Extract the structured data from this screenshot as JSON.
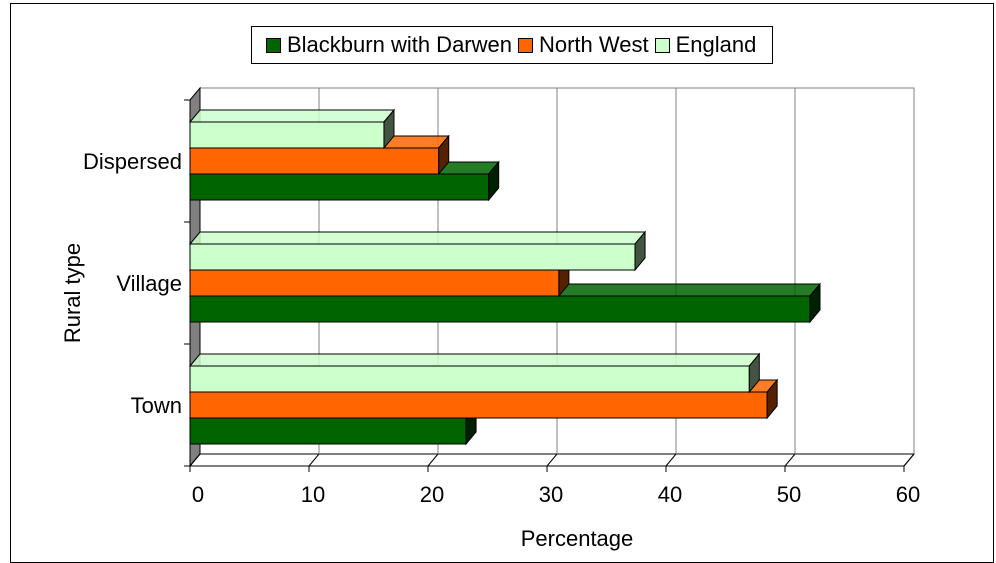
{
  "legend": {
    "items": [
      {
        "label": "Blackburn with Darwen",
        "color": "#006400"
      },
      {
        "label": "North West",
        "color": "#ff6600"
      },
      {
        "label": "England",
        "color": "#ccffcc"
      }
    ]
  },
  "chart_data": {
    "type": "bar",
    "orientation": "horizontal",
    "three_d": true,
    "categories": [
      "Town",
      "Village",
      "Dispersed"
    ],
    "series": [
      {
        "name": "Blackburn with Darwen",
        "color": "#006400",
        "values": [
          23.2,
          52.1,
          25.1
        ]
      },
      {
        "name": "North West",
        "color": "#ff6600",
        "values": [
          48.5,
          31.0,
          20.9
        ]
      },
      {
        "name": "England",
        "color": "#ccffcc",
        "values": [
          47.0,
          37.4,
          16.3
        ]
      }
    ],
    "xlabel": "Percentage",
    "ylabel": "Rural type",
    "xlim": [
      0,
      60
    ],
    "xticks": [
      "0",
      "10",
      "20",
      "30",
      "40",
      "50",
      "60"
    ],
    "grid": true,
    "legend_position": "top"
  }
}
